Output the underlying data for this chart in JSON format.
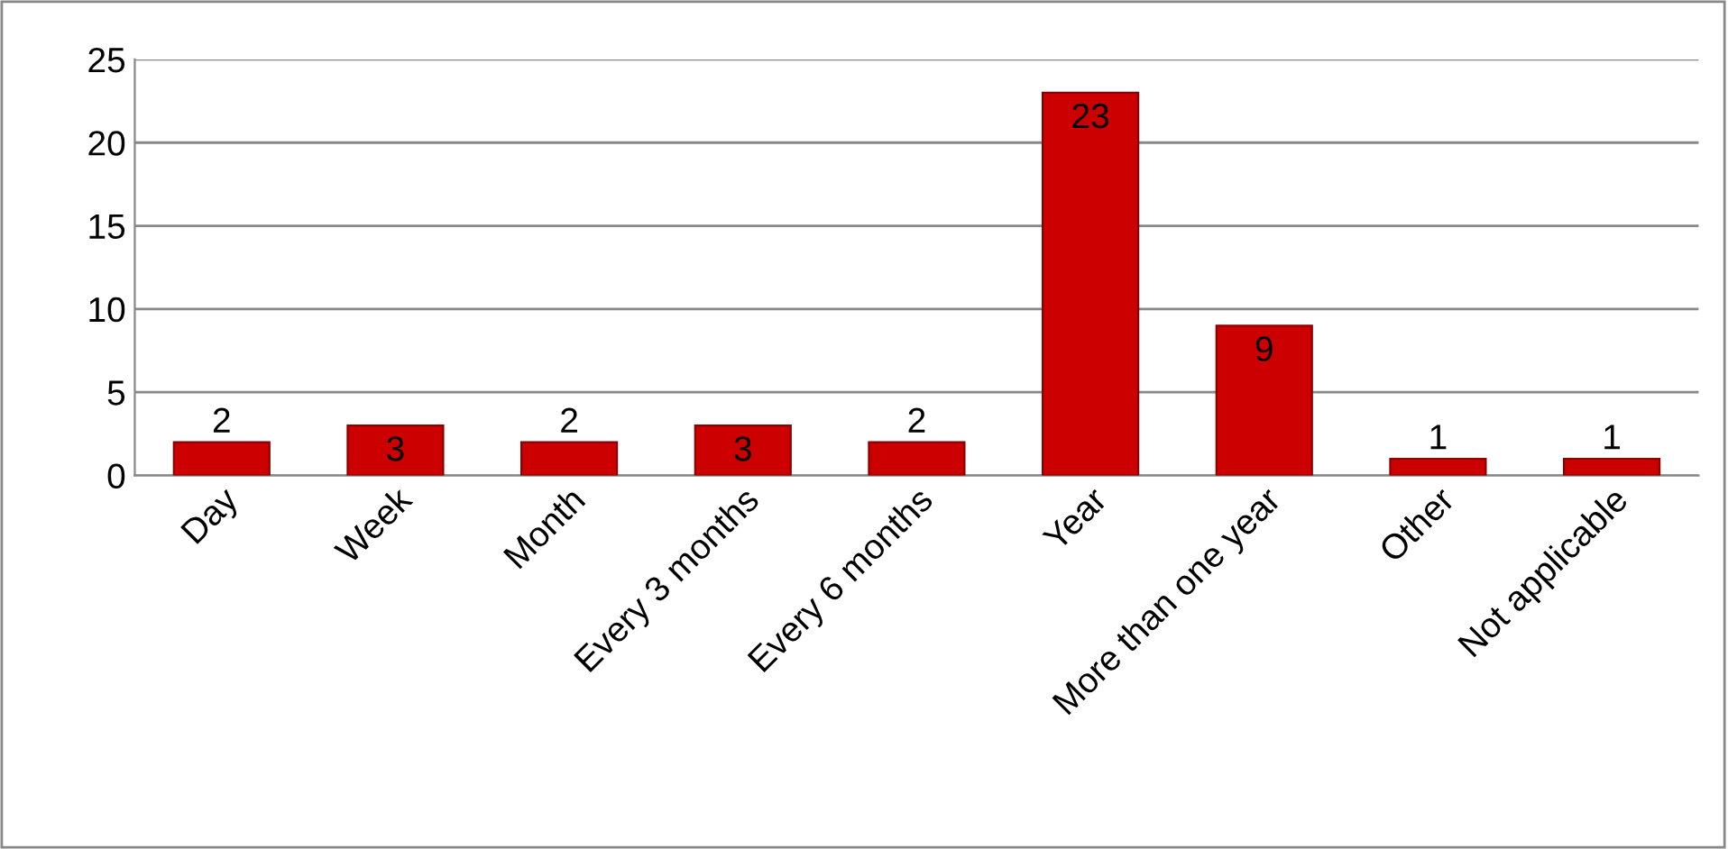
{
  "chart_data": {
    "type": "bar",
    "categories": [
      "Day",
      "Week",
      "Month",
      "Every 3 months",
      "Every 6 months",
      "Year",
      "More than one year",
      "Other",
      "Not applicable"
    ],
    "values": [
      2,
      3,
      2,
      3,
      2,
      23,
      9,
      1,
      1
    ],
    "color": "#cc0000",
    "ylim": [
      0,
      25
    ],
    "yticks": [
      0,
      5,
      10,
      15,
      20,
      25
    ],
    "grid": "y",
    "data_labels": true,
    "legend": false
  }
}
